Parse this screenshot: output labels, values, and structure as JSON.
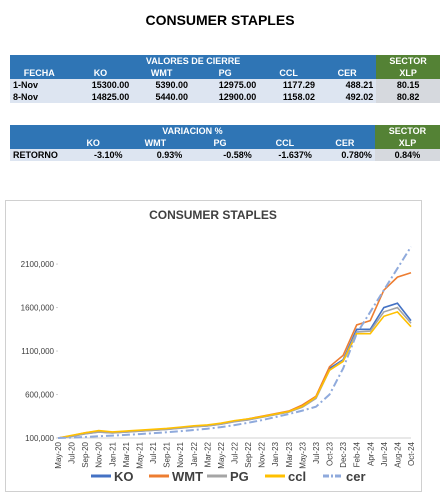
{
  "header": {
    "title": "CONSUMER STAPLES"
  },
  "table1": {
    "group_header": "VALORES DE CIERRE",
    "sector_header": "SECTOR",
    "columns": [
      "FECHA",
      "KO",
      "WMT",
      "PG",
      "CCL",
      "CER",
      "XLP"
    ],
    "rows": [
      [
        "1-Nov",
        "15300.00",
        "5390.00",
        "12975.00",
        "1177.29",
        "488.21",
        "80.15"
      ],
      [
        "8-Nov",
        "14825.00",
        "5440.00",
        "12900.00",
        "1158.02",
        "492.02",
        "80.82"
      ]
    ]
  },
  "table2": {
    "group_header": "VARIACION %",
    "sector_header": "SECTOR",
    "columns": [
      "KO",
      "WMT",
      "PG",
      "CCL",
      "CER",
      "XLP"
    ],
    "rows": [
      [
        "RETORNO",
        "-3.10%",
        "0.93%",
        "-0.58%",
        "-1.637%",
        "0.780%",
        "0.84%"
      ]
    ]
  },
  "chart_data": {
    "type": "line",
    "title": "CONSUMER STAPLES",
    "categories": [
      "May-20",
      "Jul-20",
      "Sep-20",
      "Nov-20",
      "Jan-21",
      "Mar-21",
      "May-21",
      "Jul-21",
      "Sep-21",
      "Nov-21",
      "Jan-22",
      "Mar-22",
      "May-22",
      "Jul-22",
      "Sep-22",
      "Nov-22",
      "Jan-23",
      "Mar-23",
      "May-23",
      "Jul-23",
      "Oct-23",
      "Dec-23",
      "Feb-24",
      "Apr-24",
      "Jun-24",
      "Aug-24",
      "Oct-24"
    ],
    "series": [
      {
        "name": "KO",
        "color": "#4472c4",
        "values": [
          100000,
          120000,
          150000,
          170000,
          160000,
          170000,
          180000,
          190000,
          200000,
          215000,
          230000,
          240000,
          260000,
          290000,
          310000,
          340000,
          370000,
          400000,
          460000,
          560000,
          900000,
          1000000,
          1350000,
          1350000,
          1600000,
          1650000,
          1450000
        ]
      },
      {
        "name": "WMT",
        "color": "#ed7d31",
        "values": [
          100000,
          125000,
          160000,
          180000,
          165000,
          175000,
          185000,
          195000,
          205000,
          220000,
          235000,
          245000,
          265000,
          295000,
          320000,
          350000,
          380000,
          410000,
          480000,
          580000,
          920000,
          1050000,
          1400000,
          1450000,
          1800000,
          1950000,
          2000000
        ]
      },
      {
        "name": "PG",
        "color": "#a5a5a5",
        "values": [
          100000,
          118000,
          148000,
          168000,
          158000,
          168000,
          178000,
          188000,
          198000,
          212000,
          228000,
          238000,
          258000,
          288000,
          308000,
          338000,
          368000,
          398000,
          455000,
          555000,
          880000,
          990000,
          1320000,
          1330000,
          1550000,
          1600000,
          1420000
        ]
      },
      {
        "name": "ccl",
        "color": "#ffc000",
        "values": [
          100000,
          130000,
          160000,
          185000,
          170000,
          180000,
          190000,
          200000,
          210000,
          225000,
          240000,
          250000,
          270000,
          300000,
          320000,
          345000,
          375000,
          405000,
          465000,
          570000,
          880000,
          980000,
          1300000,
          1300000,
          1500000,
          1550000,
          1380000
        ]
      },
      {
        "name": "cer",
        "color": "#8faadc",
        "line_style": "dash-dot",
        "values": [
          100000,
          105000,
          112000,
          120000,
          128000,
          136000,
          145000,
          155000,
          166000,
          178000,
          192000,
          207000,
          225000,
          248000,
          275000,
          305000,
          340000,
          375000,
          415000,
          460000,
          600000,
          900000,
          1300000,
          1550000,
          1800000,
          2050000,
          2300000
        ]
      }
    ],
    "ylim": [
      100000,
      2400000
    ],
    "yticks": [
      {
        "value": 100000,
        "label": "100,000"
      },
      {
        "value": 600000,
        "label": "600,000"
      },
      {
        "value": 1100000,
        "label": "1100,000"
      },
      {
        "value": 1600000,
        "label": "1600,000"
      },
      {
        "value": 2100000,
        "label": "2100,000"
      }
    ],
    "grid": false,
    "legend": "bottom"
  }
}
